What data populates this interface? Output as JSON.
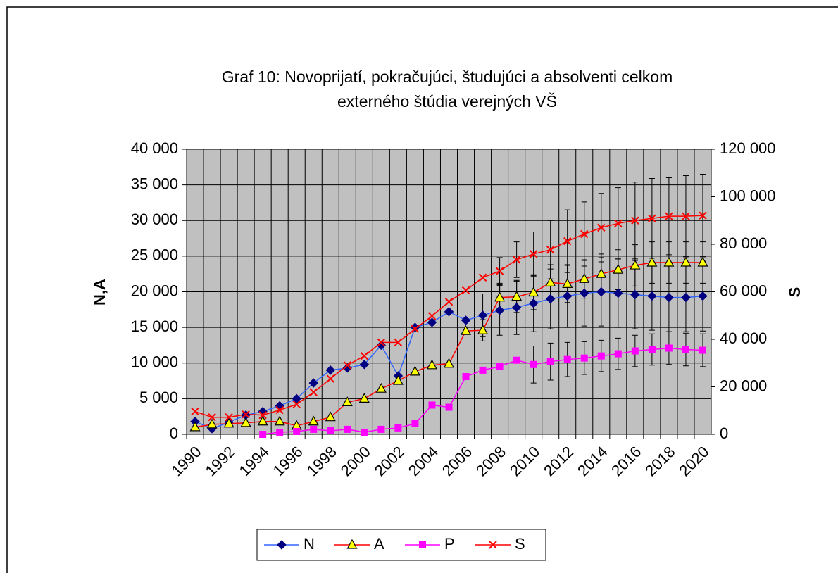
{
  "chart_data": {
    "type": "line",
    "title": [
      "Graf 10:  Novoprijatí, pokračujúci, študujúci a absolventi celkom",
      "externého štúdia verejných VŠ"
    ],
    "y_label": "N,A",
    "y2_label": "S",
    "categories": [
      "1990",
      null,
      "1992",
      null,
      "1994",
      null,
      "1996",
      null,
      "1998",
      null,
      "2000",
      null,
      "2002",
      null,
      "2004",
      null,
      "2006",
      null,
      "2008",
      null,
      "2010",
      null,
      "2012",
      null,
      "2014",
      null,
      "2016",
      null,
      "2018",
      null,
      "2020"
    ],
    "ylim": [
      0,
      40000
    ],
    "yticks": [
      0,
      {
        "value": 5000,
        "label": "5 000"
      },
      {
        "value": 10000,
        "label": "10 000"
      },
      {
        "value": 15000,
        "label": "15 000"
      },
      {
        "value": 20000,
        "label": "20 000"
      },
      {
        "value": 25000,
        "label": "25 000"
      },
      {
        "value": 30000,
        "label": "30 000"
      },
      {
        "value": 35000,
        "label": "35 000"
      },
      {
        "value": 40000,
        "label": "40 000"
      }
    ],
    "y2lim": [
      0,
      120000
    ],
    "y2ticks": [
      0,
      {
        "value": 20000,
        "label": "20 000"
      },
      {
        "value": 40000,
        "label": "40 000"
      },
      {
        "value": 60000,
        "label": "60 000"
      },
      {
        "value": 80000,
        "label": "80 000"
      },
      {
        "value": 100000,
        "label": "100 000"
      },
      {
        "value": 120000,
        "label": "120 000"
      }
    ],
    "grid": true,
    "plot_background": "#c0c0c0",
    "legend": "bottom",
    "series": [
      {
        "name": "N",
        "color": "#3366ff",
        "marker": "diamond",
        "marker_color": "#000080",
        "values": [
          1800,
          800,
          1700,
          2700,
          3200,
          4000,
          5000,
          7200,
          9000,
          9300,
          9800,
          12500,
          8200,
          15000,
          15700,
          17200,
          16000,
          16700,
          17400,
          17800,
          18400,
          19000,
          19400,
          19800,
          20000,
          19800,
          19600,
          19400,
          19200,
          19200,
          19400
        ],
        "errors": [
          null,
          null,
          null,
          null,
          null,
          null,
          null,
          null,
          null,
          null,
          null,
          null,
          null,
          null,
          null,
          null,
          null,
          3000,
          3500,
          3800,
          4000,
          4200,
          4400,
          4600,
          4800,
          4800,
          4800,
          4800,
          4800,
          4800,
          4900
        ]
      },
      {
        "name": "A",
        "color": "#ff0000",
        "marker": "triangle",
        "marker_color": "#ffff00",
        "values": [
          1000,
          1400,
          1500,
          1600,
          1800,
          1800,
          1200,
          1800,
          2400,
          4500,
          5000,
          6400,
          7500,
          8800,
          9700,
          9900,
          14500,
          14600,
          19200,
          19300,
          19900,
          21300,
          21100,
          21800,
          22500,
          23100,
          23700,
          24100,
          24100,
          24100,
          24100
        ],
        "errors": [
          null,
          null,
          null,
          null,
          null,
          null,
          null,
          null,
          null,
          null,
          null,
          null,
          null,
          null,
          null,
          null,
          null,
          1500,
          2000,
          2200,
          2400,
          2500,
          2600,
          2700,
          2800,
          2800,
          2900,
          2900,
          2900,
          2900,
          2900
        ]
      },
      {
        "name": "P",
        "color": "#ff00ff",
        "marker": "square",
        "marker_color": "#ff00ff",
        "values": [
          null,
          null,
          null,
          null,
          0,
          300,
          400,
          700,
          500,
          700,
          300,
          700,
          900,
          1500,
          4100,
          3800,
          8100,
          9000,
          9500,
          10400,
          9800,
          10200,
          10500,
          10700,
          11000,
          11300,
          11700,
          11900,
          12100,
          11900,
          11800
        ],
        "errors": [
          null,
          null,
          null,
          null,
          null,
          null,
          null,
          null,
          null,
          null,
          null,
          null,
          null,
          null,
          null,
          null,
          null,
          null,
          null,
          null,
          2600,
          2600,
          2400,
          2300,
          2200,
          2200,
          2200,
          2200,
          2300,
          2300,
          2300
        ]
      },
      {
        "name": "S",
        "color": "#ff0000",
        "marker": "x",
        "marker_color": "#ff0000",
        "axis": "y2",
        "values": [
          9600,
          7200,
          7200,
          8400,
          8100,
          10200,
          12600,
          17700,
          23400,
          29100,
          33000,
          38700,
          38700,
          44400,
          49800,
          55800,
          60600,
          66000,
          68700,
          73500,
          75900,
          77700,
          81300,
          84300,
          87000,
          88800,
          90000,
          90900,
          91800,
          91800,
          92100
        ],
        "errors": [
          null,
          null,
          null,
          null,
          null,
          null,
          null,
          null,
          null,
          null,
          null,
          null,
          null,
          null,
          null,
          null,
          null,
          null,
          5700,
          7500,
          9300,
          12300,
          13200,
          13500,
          14400,
          15000,
          16200,
          16800,
          16200,
          17100,
          17400
        ]
      }
    ]
  }
}
